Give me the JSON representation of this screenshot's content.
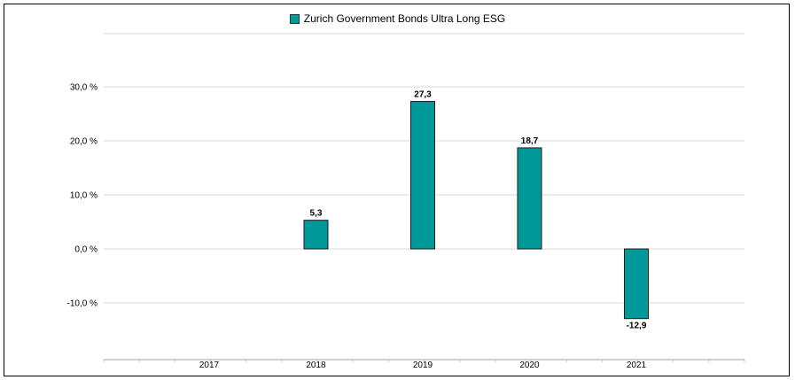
{
  "chart_data": {
    "type": "bar",
    "title": "",
    "xlabel": "",
    "ylabel": "",
    "categories": [
      "2017",
      "2018",
      "2019",
      "2020",
      "2021"
    ],
    "series": [
      {
        "name": "Zurich Government Bonds Ultra Long ESG",
        "values": [
          null,
          5.3,
          27.3,
          18.7,
          -12.9
        ],
        "data_labels": [
          "",
          "5,3",
          "27,3",
          "18,7",
          "-12,9"
        ],
        "color": "#009999"
      }
    ],
    "ylim": [
      -20,
      40
    ],
    "yticks": [
      -10,
      0,
      10,
      20,
      30
    ],
    "ytick_labels": [
      "-10,0 %",
      "0,0 %",
      "10,0 %",
      "20,0 %",
      "30,0 %"
    ],
    "grid": true,
    "legend_position": "top-center"
  }
}
